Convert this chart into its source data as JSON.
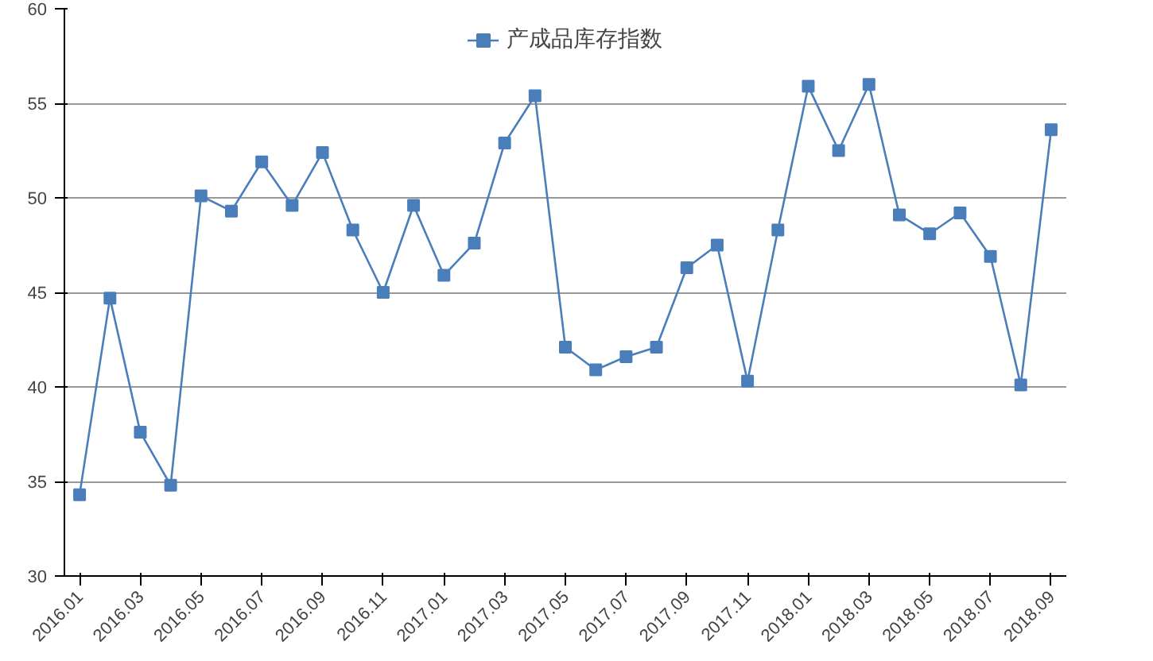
{
  "chart_data": {
    "type": "line",
    "categories": [
      "2016.01",
      null,
      "2016.03",
      null,
      "2016.05",
      null,
      "2016.07",
      null,
      "2016.09",
      null,
      "2016.11",
      null,
      "2017.01",
      null,
      "2017.03",
      null,
      "2017.05",
      null,
      "2017.07",
      null,
      "2017.09",
      null,
      "2017.11",
      null,
      "2018.01",
      null,
      "2018.03",
      null,
      "2018.05",
      null,
      "2018.07",
      null,
      "2018.09"
    ],
    "series": [
      {
        "name": "产成品库存指数",
        "color": "#4a7ebb",
        "values": [
          34.3,
          44.7,
          37.6,
          34.8,
          50.1,
          49.3,
          51.9,
          49.6,
          52.4,
          48.3,
          45.0,
          49.6,
          45.9,
          47.6,
          52.9,
          55.4,
          42.1,
          40.9,
          41.6,
          42.1,
          46.3,
          47.5,
          40.3,
          48.3,
          55.9,
          52.5,
          56.0,
          49.1,
          48.1,
          49.2,
          46.9,
          40.1,
          53.6
        ]
      }
    ],
    "ylim": [
      30,
      60
    ],
    "yticks": [
      30,
      35,
      40,
      45,
      50,
      55,
      60
    ],
    "grid": "y",
    "legend": "top",
    "marker": "square",
    "line_style": "solid"
  }
}
